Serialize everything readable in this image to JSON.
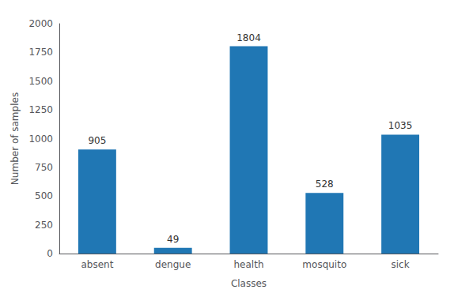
{
  "chart_data": {
    "type": "bar",
    "categories": [
      "absent",
      "dengue",
      "health",
      "mosquito",
      "sick"
    ],
    "values": [
      905,
      49,
      1804,
      528,
      1035
    ],
    "color": "#2077b4",
    "xlabel": "Classes",
    "ylabel": "Number of samples",
    "ylim": [
      0,
      2000
    ],
    "yticks": [
      0,
      250,
      500,
      750,
      1000,
      1250,
      1500,
      1750,
      2000
    ],
    "data_labels": true,
    "grid": false
  }
}
